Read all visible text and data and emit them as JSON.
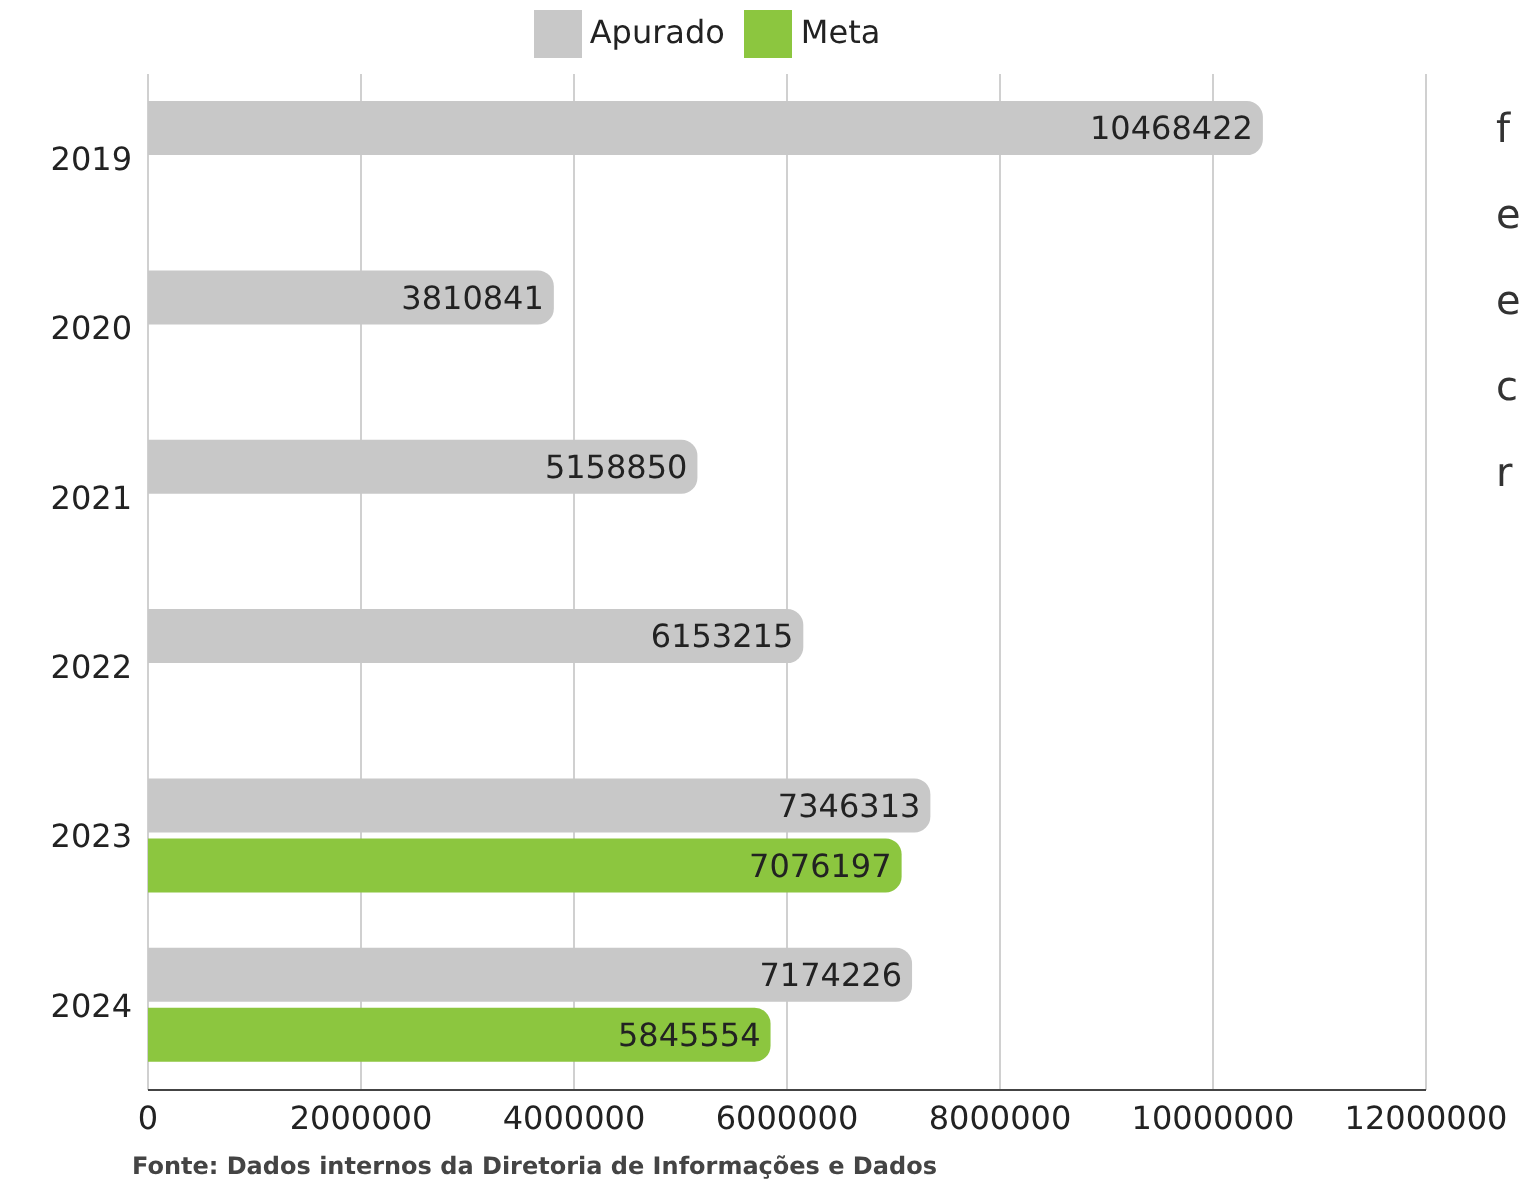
{
  "chart_data": {
    "type": "bar",
    "orientation": "horizontal",
    "categories": [
      "2019",
      "2020",
      "2021",
      "2022",
      "2023",
      "2024"
    ],
    "series": [
      {
        "name": "Apurado",
        "color": "#c8c8c8",
        "values": [
          10468422,
          3810841,
          5158850,
          6153215,
          7346313,
          7174226
        ]
      },
      {
        "name": "Meta",
        "color": "#8cc63f",
        "values": [
          null,
          null,
          null,
          null,
          7076197,
          5845554
        ]
      }
    ],
    "xlim": [
      0,
      12000000
    ],
    "xticks": [
      0,
      2000000,
      4000000,
      6000000,
      8000000,
      10000000,
      12000000
    ],
    "grid": "x",
    "legend": "top",
    "data_labels": true,
    "annotations": [
      "Fonte:  Dados internos da Diretoria de Informações e Dados",
      "f",
      "e",
      "e",
      "c",
      "r"
    ]
  }
}
